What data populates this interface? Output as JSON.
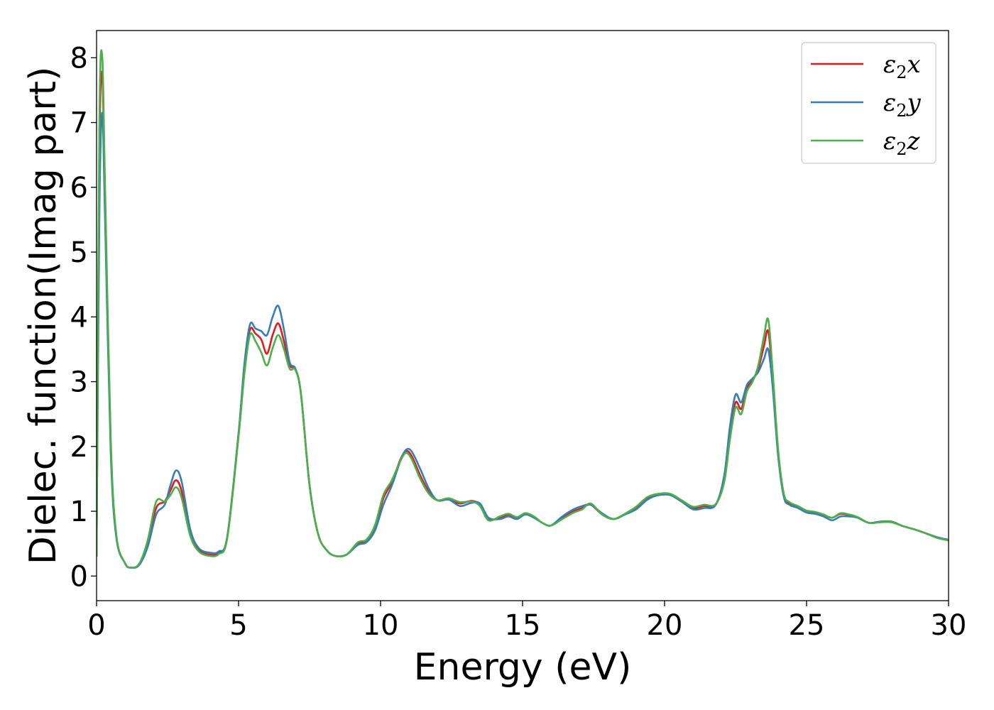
{
  "chart_data": {
    "type": "line",
    "xlabel": "Energy (eV)",
    "ylabel": "Dielec. function(Imag part)",
    "xlim": [
      0,
      30
    ],
    "ylim": [
      -0.38,
      8.42
    ],
    "xticks": [
      "0",
      "5",
      "10",
      "15",
      "20",
      "25",
      "30"
    ],
    "yticks": [
      "0",
      "1",
      "2",
      "3",
      "4",
      "5",
      "6",
      "7",
      "8"
    ],
    "grid": false,
    "legend_position": "top-right",
    "series": [
      {
        "name": "ε2x",
        "legend_base": "ε",
        "legend_sub": "2",
        "legend_var": "x",
        "color": "#e41a1c",
        "x": [
          0,
          0.1,
          0.2,
          0.3,
          0.5,
          0.7,
          1.0,
          1.2,
          1.5,
          1.8,
          2.1,
          2.4,
          2.6,
          2.8,
          3.0,
          3.3,
          3.6,
          4.0,
          4.3,
          4.6,
          5.0,
          5.2,
          5.4,
          5.6,
          5.8,
          6.0,
          6.2,
          6.4,
          6.6,
          6.8,
          7.0,
          7.2,
          7.5,
          7.8,
          8.1,
          8.4,
          8.8,
          9.2,
          9.5,
          9.8,
          10.1,
          10.4,
          10.7,
          10.9,
          11.1,
          11.4,
          11.7,
          12.0,
          12.4,
          12.8,
          13.2,
          13.5,
          13.8,
          14.2,
          14.5,
          14.8,
          15.1,
          15.4,
          15.7,
          16.0,
          16.4,
          16.8,
          17.1,
          17.4,
          17.8,
          18.2,
          18.6,
          19.0,
          19.4,
          19.8,
          20.2,
          20.6,
          21.0,
          21.4,
          21.8,
          22.1,
          22.3,
          22.5,
          22.7,
          22.9,
          23.1,
          23.3,
          23.5,
          23.65,
          23.8,
          24.0,
          24.2,
          24.4,
          24.7,
          25.0,
          25.3,
          25.6,
          25.9,
          26.2,
          26.5,
          26.8,
          27.2,
          27.6,
          28.0,
          28.4,
          28.8,
          29.2,
          29.6,
          30.0
        ],
        "values": [
          0.3,
          6.5,
          7.75,
          5.8,
          2.0,
          0.6,
          0.2,
          0.13,
          0.18,
          0.5,
          1.05,
          1.15,
          1.32,
          1.48,
          1.3,
          0.65,
          0.4,
          0.33,
          0.36,
          0.6,
          2.2,
          3.2,
          3.8,
          3.74,
          3.65,
          3.43,
          3.72,
          3.9,
          3.62,
          3.25,
          3.2,
          2.8,
          1.4,
          0.65,
          0.4,
          0.31,
          0.33,
          0.5,
          0.55,
          0.75,
          1.2,
          1.45,
          1.8,
          1.93,
          1.85,
          1.55,
          1.3,
          1.17,
          1.18,
          1.12,
          1.16,
          1.1,
          0.88,
          0.9,
          0.95,
          0.9,
          0.97,
          0.91,
          0.82,
          0.78,
          0.9,
          1.0,
          1.05,
          1.1,
          0.95,
          0.88,
          0.95,
          1.05,
          1.2,
          1.25,
          1.25,
          1.15,
          1.05,
          1.08,
          1.1,
          1.5,
          2.2,
          2.68,
          2.58,
          2.9,
          3.02,
          3.2,
          3.55,
          3.78,
          3.1,
          1.9,
          1.25,
          1.12,
          1.07,
          1.0,
          0.98,
          0.94,
          0.9,
          0.96,
          0.94,
          0.9,
          0.82,
          0.84,
          0.83,
          0.77,
          0.72,
          0.66,
          0.59,
          0.55
        ]
      },
      {
        "name": "ε2y",
        "legend_base": "ε",
        "legend_sub": "2",
        "legend_var": "y",
        "color": "#377eb8",
        "x": [
          0,
          0.1,
          0.2,
          0.3,
          0.5,
          0.7,
          1.0,
          1.2,
          1.5,
          1.8,
          2.1,
          2.4,
          2.6,
          2.8,
          3.0,
          3.3,
          3.6,
          4.0,
          4.3,
          4.6,
          5.0,
          5.2,
          5.4,
          5.6,
          5.8,
          6.0,
          6.2,
          6.4,
          6.6,
          6.8,
          7.0,
          7.2,
          7.5,
          7.8,
          8.1,
          8.4,
          8.8,
          9.2,
          9.5,
          9.8,
          10.1,
          10.4,
          10.7,
          10.9,
          11.1,
          11.4,
          11.7,
          12.0,
          12.4,
          12.8,
          13.2,
          13.5,
          13.8,
          14.2,
          14.5,
          14.8,
          15.1,
          15.4,
          15.7,
          16.0,
          16.4,
          16.8,
          17.1,
          17.4,
          17.8,
          18.2,
          18.6,
          19.0,
          19.4,
          19.8,
          20.2,
          20.6,
          21.0,
          21.4,
          21.8,
          22.1,
          22.3,
          22.5,
          22.7,
          22.9,
          23.1,
          23.3,
          23.5,
          23.65,
          23.8,
          24.0,
          24.2,
          24.4,
          24.7,
          25.0,
          25.3,
          25.6,
          25.9,
          26.2,
          26.5,
          26.8,
          27.2,
          27.6,
          28.0,
          28.4,
          28.8,
          29.2,
          29.6,
          30.0
        ],
        "values": [
          0.3,
          5.6,
          7.15,
          5.5,
          1.9,
          0.58,
          0.2,
          0.13,
          0.17,
          0.45,
          0.95,
          1.1,
          1.4,
          1.63,
          1.45,
          0.72,
          0.43,
          0.36,
          0.38,
          0.6,
          2.2,
          3.25,
          3.88,
          3.82,
          3.78,
          3.72,
          4.0,
          4.17,
          3.8,
          3.3,
          3.2,
          2.8,
          1.4,
          0.65,
          0.4,
          0.31,
          0.33,
          0.48,
          0.52,
          0.7,
          1.1,
          1.4,
          1.78,
          1.95,
          1.92,
          1.65,
          1.35,
          1.17,
          1.18,
          1.08,
          1.13,
          1.12,
          0.9,
          0.88,
          0.92,
          0.88,
          0.95,
          0.9,
          0.82,
          0.78,
          0.92,
          1.03,
          1.08,
          1.1,
          0.97,
          0.88,
          0.95,
          1.03,
          1.18,
          1.25,
          1.25,
          1.15,
          1.03,
          1.05,
          1.1,
          1.55,
          2.3,
          2.8,
          2.68,
          2.95,
          3.05,
          3.15,
          3.35,
          3.5,
          2.95,
          1.85,
          1.22,
          1.1,
          1.05,
          0.98,
          0.96,
          0.92,
          0.86,
          0.92,
          0.92,
          0.9,
          0.82,
          0.84,
          0.84,
          0.77,
          0.72,
          0.66,
          0.6,
          0.56
        ]
      },
      {
        "name": "ε2z",
        "legend_base": "ε",
        "legend_sub": "2",
        "legend_var": "z",
        "color": "#4daf4a",
        "x": [
          0,
          0.1,
          0.2,
          0.3,
          0.5,
          0.7,
          1.0,
          1.2,
          1.5,
          1.8,
          2.1,
          2.4,
          2.6,
          2.8,
          3.0,
          3.3,
          3.6,
          4.0,
          4.3,
          4.6,
          5.0,
          5.2,
          5.4,
          5.6,
          5.8,
          6.0,
          6.2,
          6.4,
          6.6,
          6.8,
          7.0,
          7.2,
          7.5,
          7.8,
          8.1,
          8.4,
          8.8,
          9.2,
          9.5,
          9.8,
          10.1,
          10.4,
          10.7,
          10.9,
          11.1,
          11.4,
          11.7,
          12.0,
          12.4,
          12.8,
          13.2,
          13.5,
          13.8,
          14.2,
          14.5,
          14.8,
          15.1,
          15.4,
          15.7,
          16.0,
          16.4,
          16.8,
          17.1,
          17.4,
          17.8,
          18.2,
          18.6,
          19.0,
          19.4,
          19.8,
          20.2,
          20.6,
          21.0,
          21.4,
          21.8,
          22.1,
          22.3,
          22.5,
          22.7,
          22.9,
          23.1,
          23.3,
          23.5,
          23.65,
          23.8,
          24.0,
          24.2,
          24.4,
          24.7,
          25.0,
          25.3,
          25.6,
          25.9,
          26.2,
          26.5,
          26.8,
          27.2,
          27.6,
          28.0,
          28.4,
          28.8,
          29.2,
          29.6,
          30.0
        ],
        "values": [
          0.3,
          7.0,
          8.02,
          6.0,
          2.1,
          0.62,
          0.2,
          0.13,
          0.19,
          0.55,
          1.15,
          1.15,
          1.25,
          1.37,
          1.2,
          0.62,
          0.38,
          0.31,
          0.34,
          0.58,
          2.15,
          3.1,
          3.72,
          3.62,
          3.45,
          3.25,
          3.52,
          3.72,
          3.5,
          3.2,
          3.18,
          2.8,
          1.4,
          0.65,
          0.4,
          0.31,
          0.33,
          0.52,
          0.56,
          0.78,
          1.25,
          1.48,
          1.78,
          1.9,
          1.8,
          1.5,
          1.27,
          1.17,
          1.2,
          1.14,
          1.15,
          1.08,
          0.86,
          0.92,
          0.96,
          0.91,
          0.97,
          0.92,
          0.82,
          0.78,
          0.88,
          0.98,
          1.03,
          1.12,
          0.95,
          0.88,
          0.96,
          1.07,
          1.22,
          1.27,
          1.27,
          1.17,
          1.07,
          1.1,
          1.11,
          1.45,
          2.1,
          2.6,
          2.5,
          2.85,
          3.0,
          3.25,
          3.7,
          3.96,
          3.2,
          1.95,
          1.27,
          1.14,
          1.08,
          1.01,
          0.99,
          0.95,
          0.9,
          0.97,
          0.95,
          0.91,
          0.82,
          0.83,
          0.83,
          0.77,
          0.72,
          0.66,
          0.59,
          0.55
        ]
      }
    ]
  }
}
